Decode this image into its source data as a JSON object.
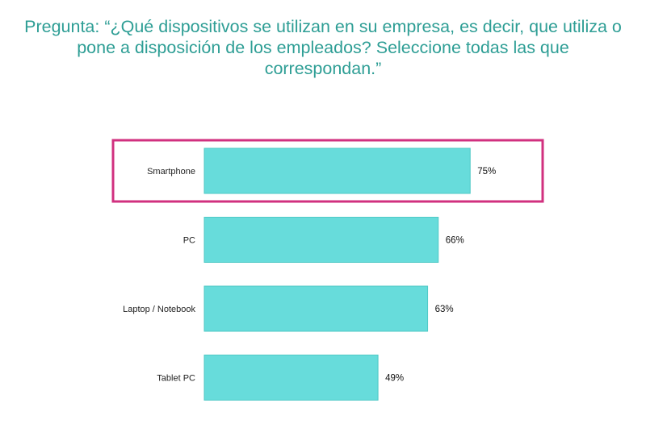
{
  "title": "Pregunta: “¿Qué dispositivos se utilizan en su empresa, es decir, que utiliza o pone a disposición de los empleados? Seleccione todas las que correspondan.”",
  "colors": {
    "title": "#2e9e95",
    "bar_fill": "#67dcdb",
    "bar_stroke": "#4fc9c6",
    "highlight_border": "#d1307f"
  },
  "chart_data": {
    "type": "bar",
    "orientation": "horizontal",
    "categories": [
      "Smartphone",
      "PC",
      "Laptop / Notebook",
      "Tablet PC"
    ],
    "values": [
      75,
      66,
      63,
      49
    ],
    "value_labels": [
      "75%",
      "66%",
      "63%",
      "49%"
    ],
    "unit": "%",
    "highlighted_category": "Smartphone",
    "grid": false,
    "legend": "none"
  }
}
